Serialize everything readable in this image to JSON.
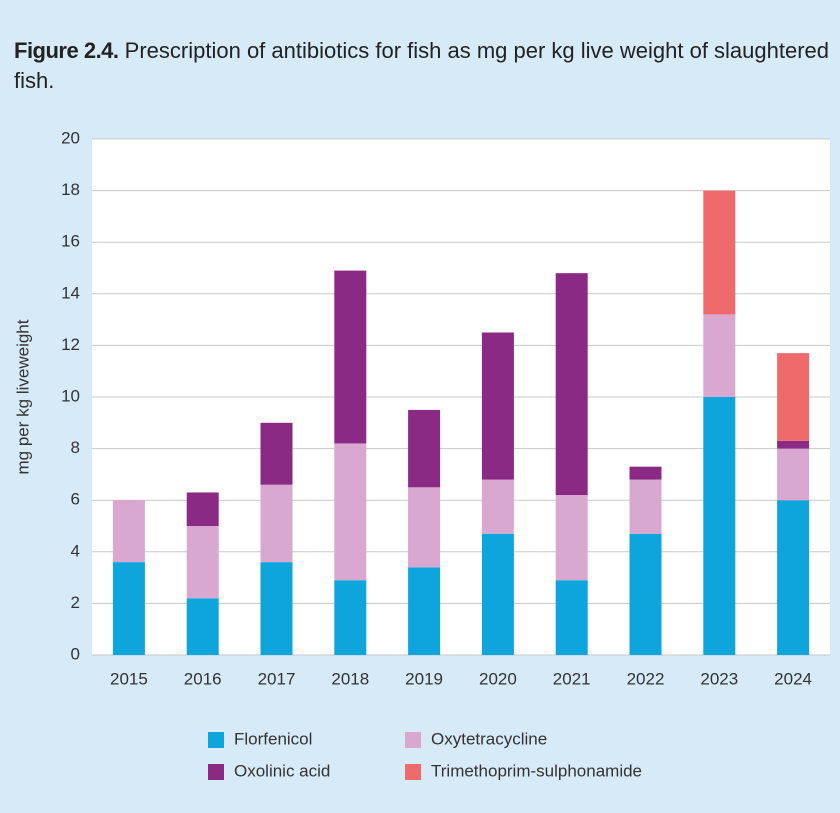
{
  "chart_data": {
    "type": "stacked_bar",
    "title_label": "Figure 2.4.",
    "title": "Prescription of antibiotics for fish as mg per kg live weight of slaughtered fish.",
    "y_label": "mg per kg liveweight",
    "categories": [
      "2015",
      "2016",
      "2017",
      "2018",
      "2019",
      "2020",
      "2021",
      "2022",
      "2023",
      "2024"
    ],
    "series": [
      {
        "name": "Florfenicol",
        "color": "#0ea5dc",
        "values": [
          3.6,
          2.2,
          3.6,
          2.9,
          3.4,
          4.7,
          2.9,
          4.7,
          10.0,
          6.0
        ]
      },
      {
        "name": "Oxytetracycline",
        "color": "#d8a8d0",
        "values": [
          2.4,
          2.8,
          3.0,
          5.3,
          3.1,
          2.1,
          3.3,
          2.1,
          3.2,
          2.0
        ]
      },
      {
        "name": "Oxolinic acid",
        "color": "#8b2a85",
        "values": [
          0,
          1.3,
          2.4,
          6.7,
          3.0,
          5.7,
          8.6,
          0.5,
          0,
          0.3
        ]
      },
      {
        "name": "Trimethoprim-sulphonamide",
        "color": "#ef6b6b",
        "values": [
          0,
          0,
          0,
          0,
          0,
          0,
          0,
          0,
          4.8,
          3.4
        ]
      }
    ],
    "ylim": [
      0,
      20
    ],
    "yticks": [
      0,
      2,
      4,
      6,
      8,
      10,
      12,
      14,
      16,
      18,
      20
    ],
    "grid": true
  }
}
